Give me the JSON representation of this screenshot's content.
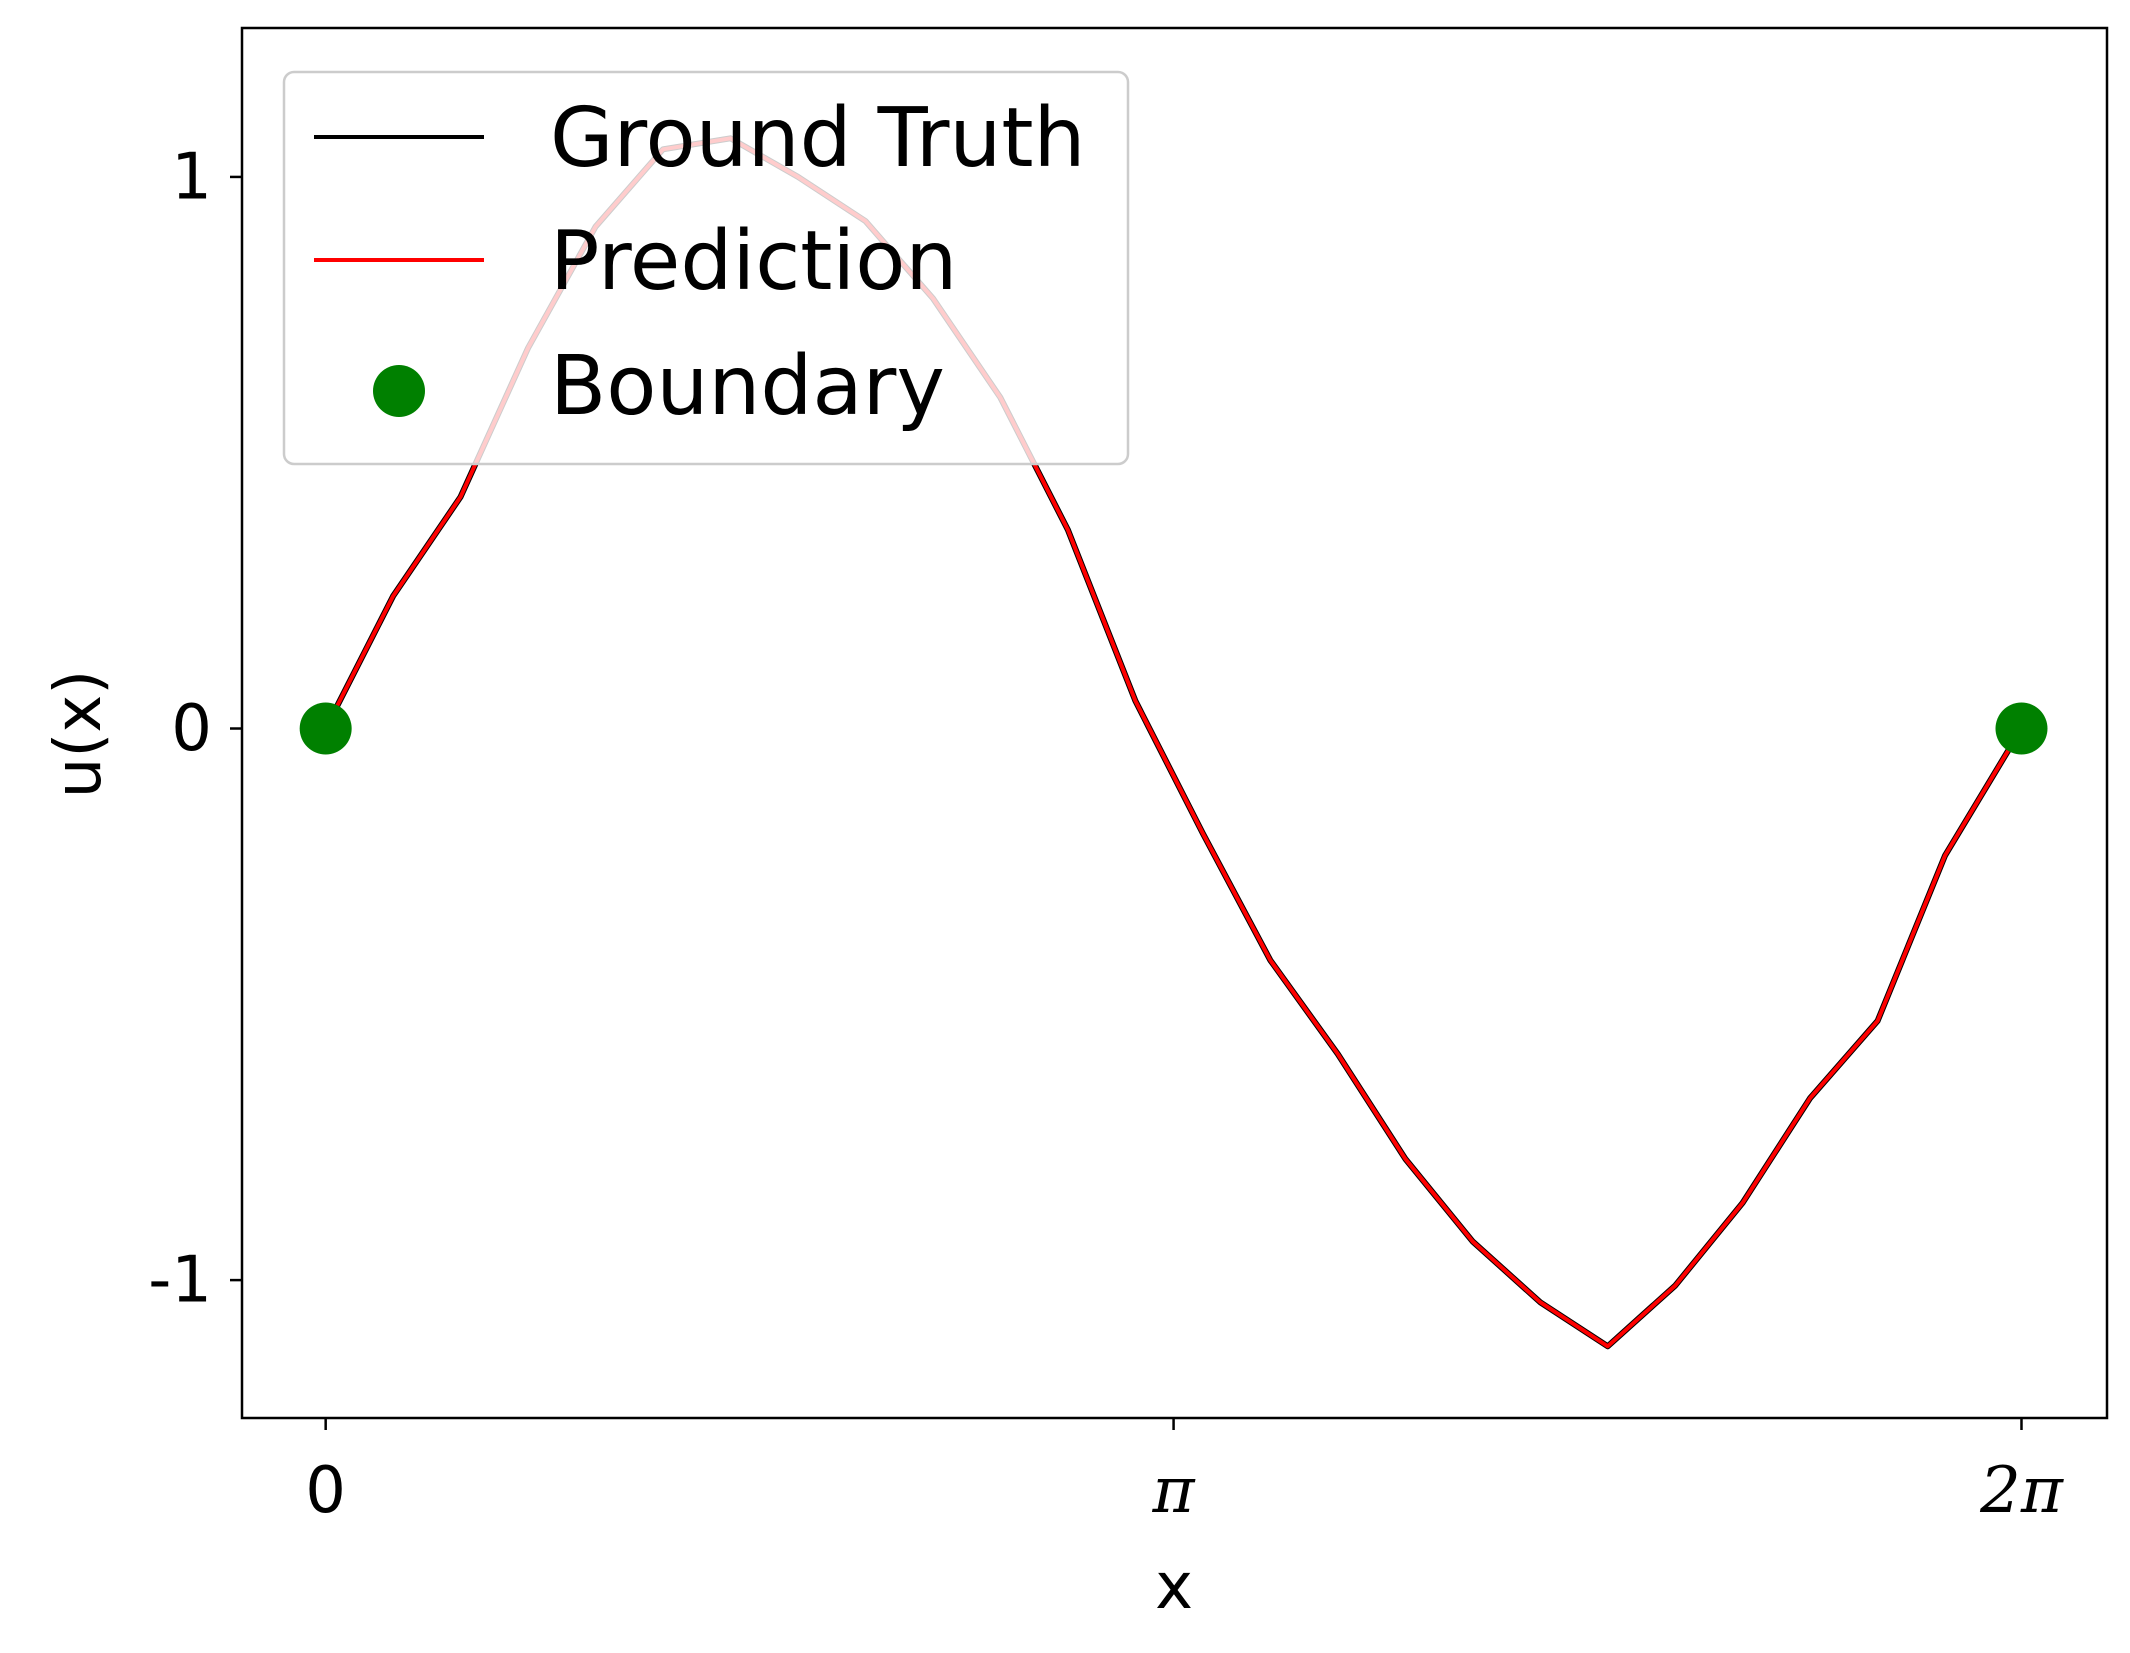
{
  "chart_data": {
    "type": "line",
    "xlabel": "x",
    "ylabel": "u(x)",
    "xlim": [
      -0.31,
      6.6
    ],
    "ylim": [
      -1.25,
      1.27
    ],
    "xticks": [
      {
        "value": 0,
        "label": "0"
      },
      {
        "value": 3.14159,
        "label": "π"
      },
      {
        "value": 6.28319,
        "label": "2π"
      }
    ],
    "yticks": [
      {
        "value": 1,
        "label": "1"
      },
      {
        "value": 0,
        "label": "0"
      },
      {
        "value": -1,
        "label": "-1"
      }
    ],
    "legend": {
      "location": "upper left",
      "entries": [
        {
          "label": "Ground Truth",
          "color": "#000000",
          "marker": "line"
        },
        {
          "label": "Prediction",
          "color": "#ff0000",
          "marker": "line"
        },
        {
          "label": "Boundary",
          "color": "#008000",
          "marker": "circle"
        }
      ]
    },
    "series": [
      {
        "name": "Ground Truth",
        "color": "#000000",
        "x": [
          0,
          0.25,
          0.5,
          0.75,
          1.0,
          1.25,
          1.5,
          1.75,
          2.0,
          2.25,
          2.5,
          2.75,
          3.0,
          3.25,
          3.5,
          3.75,
          4.0,
          4.25,
          4.5,
          4.75,
          5.0,
          5.25,
          5.5,
          5.75,
          6.0,
          6.28319
        ],
        "y": [
          0.0,
          0.24,
          0.42,
          0.69,
          0.91,
          1.05,
          1.07,
          1.0,
          0.92,
          0.78,
          0.6,
          0.36,
          0.05,
          -0.19,
          -0.42,
          -0.59,
          -0.78,
          -0.93,
          -1.04,
          -1.12,
          -1.01,
          -0.86,
          -0.67,
          -0.53,
          -0.23,
          0.0
        ]
      },
      {
        "name": "Prediction",
        "color": "#ff0000",
        "x": [
          0,
          0.25,
          0.5,
          0.75,
          1.0,
          1.25,
          1.5,
          1.75,
          2.0,
          2.25,
          2.5,
          2.75,
          3.0,
          3.25,
          3.5,
          3.75,
          4.0,
          4.25,
          4.5,
          4.75,
          5.0,
          5.25,
          5.5,
          5.75,
          6.0,
          6.28319
        ],
        "y": [
          0.0,
          0.24,
          0.42,
          0.69,
          0.91,
          1.05,
          1.07,
          1.0,
          0.92,
          0.78,
          0.6,
          0.36,
          0.05,
          -0.19,
          -0.42,
          -0.59,
          -0.78,
          -0.93,
          -1.04,
          -1.12,
          -1.01,
          -0.86,
          -0.67,
          -0.53,
          -0.23,
          0.0
        ]
      }
    ],
    "boundary_points": [
      {
        "x": 0,
        "y": 0
      },
      {
        "x": 6.28319,
        "y": 0
      }
    ]
  }
}
